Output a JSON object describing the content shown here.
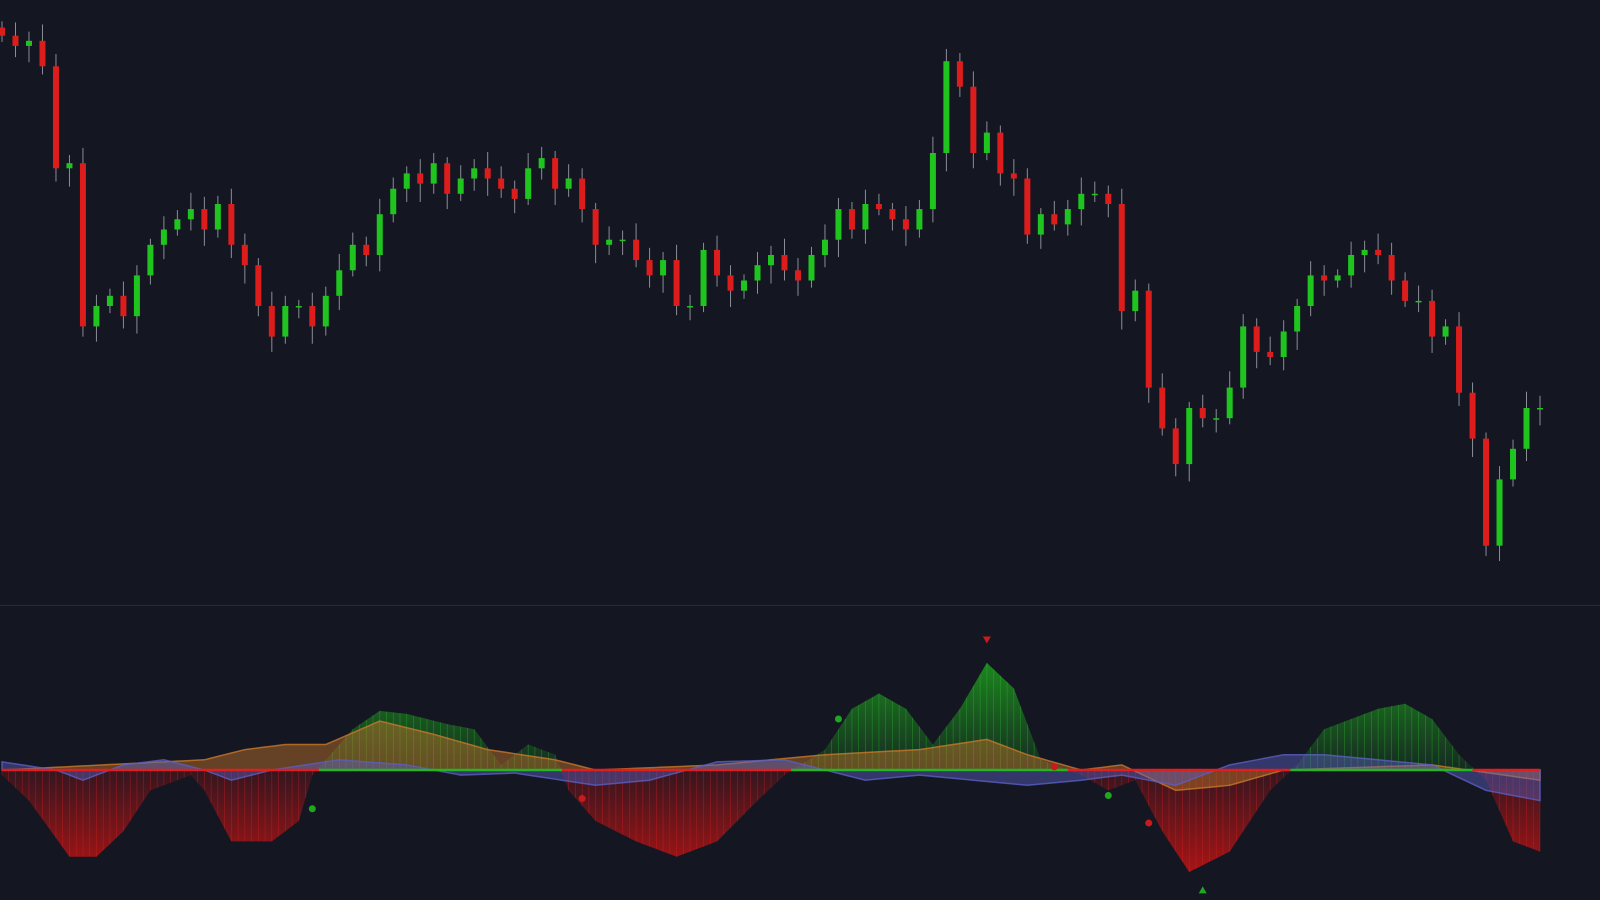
{
  "chart_data": [
    {
      "type": "candlestick",
      "title": "",
      "xlabel": "",
      "ylabel": "",
      "grid": false,
      "colors": {
        "up": "#1fc41f",
        "down": "#dd1c1c",
        "wick": "#8a8d96",
        "background": "#141622"
      },
      "close": [
        565,
        555,
        560,
        535,
        435,
        440,
        280,
        300,
        310,
        290,
        330,
        360,
        375,
        385,
        395,
        375,
        400,
        360,
        340,
        300,
        270,
        300,
        300,
        280,
        310,
        335,
        360,
        350,
        390,
        415,
        430,
        420,
        440,
        410,
        425,
        435,
        425,
        415,
        405,
        435,
        445,
        415,
        425,
        395,
        360,
        365,
        365,
        345,
        330,
        345,
        300,
        300,
        355,
        330,
        315,
        325,
        340,
        350,
        335,
        325,
        350,
        365,
        395,
        375,
        400,
        395,
        385,
        375,
        395,
        450,
        540,
        515,
        450,
        470,
        430,
        425,
        370,
        390,
        380,
        395,
        410,
        410,
        400,
        295,
        315,
        220,
        180,
        145,
        200,
        190,
        190,
        220,
        280,
        255,
        250,
        275,
        300,
        330,
        325,
        330,
        350,
        355,
        350,
        325,
        305,
        305,
        270,
        280,
        215,
        170,
        65,
        130,
        160,
        200,
        200
      ]
    },
    {
      "type": "area",
      "title": "",
      "grid": false,
      "zero_line": {
        "positive_color": "#22b822",
        "negative_color": "#e01e1e"
      },
      "series": [
        {
          "id": "histogram",
          "style": "histogram",
          "colors": {
            "positive": "#1e9a1e",
            "negative": "#b01414"
          },
          "points": [
            [
              0,
              -5
            ],
            [
              2,
              -30
            ],
            [
              5,
              -85
            ],
            [
              7,
              -85
            ],
            [
              9,
              -60
            ],
            [
              11,
              -20
            ],
            [
              14,
              -5
            ],
            [
              15,
              -20
            ],
            [
              17,
              -70
            ],
            [
              20,
              -70
            ],
            [
              22,
              -50
            ],
            [
              23,
              -5
            ],
            [
              26,
              40
            ],
            [
              28,
              58
            ],
            [
              30,
              55
            ],
            [
              33,
              45
            ],
            [
              35,
              40
            ],
            [
              37,
              5
            ],
            [
              39,
              25
            ],
            [
              41,
              15
            ],
            [
              42,
              -20
            ],
            [
              44,
              -50
            ],
            [
              47,
              -70
            ],
            [
              50,
              -85
            ],
            [
              53,
              -70
            ],
            [
              56,
              -30
            ],
            [
              58,
              -5
            ],
            [
              61,
              20
            ],
            [
              63,
              60
            ],
            [
              65,
              75
            ],
            [
              67,
              60
            ],
            [
              69,
              25
            ],
            [
              71,
              60
            ],
            [
              73,
              105
            ],
            [
              75,
              80
            ],
            [
              77,
              10
            ],
            [
              80,
              -5
            ],
            [
              82,
              -20
            ],
            [
              84,
              -10
            ],
            [
              86,
              -60
            ],
            [
              88,
              -100
            ],
            [
              91,
              -80
            ],
            [
              94,
              -20
            ],
            [
              96,
              5
            ],
            [
              98,
              40
            ],
            [
              102,
              60
            ],
            [
              104,
              65
            ],
            [
              106,
              50
            ],
            [
              108,
              15
            ],
            [
              110,
              -10
            ],
            [
              112,
              -70
            ],
            [
              114,
              -80
            ]
          ]
        },
        {
          "id": "orange-line",
          "style": "area",
          "color": "#c8782a",
          "points": [
            [
              0,
              0
            ],
            [
              15,
              10
            ],
            [
              18,
              20
            ],
            [
              21,
              25
            ],
            [
              24,
              25
            ],
            [
              28,
              48
            ],
            [
              32,
              35
            ],
            [
              36,
              20
            ],
            [
              41,
              10
            ],
            [
              44,
              0
            ],
            [
              53,
              5
            ],
            [
              61,
              15
            ],
            [
              68,
              20
            ],
            [
              73,
              30
            ],
            [
              76,
              15
            ],
            [
              80,
              0
            ],
            [
              83,
              5
            ],
            [
              87,
              -20
            ],
            [
              91,
              -15
            ],
            [
              95,
              0
            ],
            [
              106,
              5
            ],
            [
              114,
              -10
            ]
          ]
        },
        {
          "id": "blue-line",
          "style": "area",
          "color": "#5a5fc0",
          "points": [
            [
              0,
              8
            ],
            [
              4,
              0
            ],
            [
              6,
              -10
            ],
            [
              9,
              5
            ],
            [
              12,
              10
            ],
            [
              15,
              0
            ],
            [
              17,
              -10
            ],
            [
              20,
              0
            ],
            [
              25,
              10
            ],
            [
              30,
              5
            ],
            [
              34,
              -5
            ],
            [
              38,
              -3
            ],
            [
              44,
              -15
            ],
            [
              48,
              -10
            ],
            [
              53,
              8
            ],
            [
              58,
              10
            ],
            [
              61,
              0
            ],
            [
              64,
              -10
            ],
            [
              68,
              -5
            ],
            [
              72,
              -10
            ],
            [
              76,
              -15
            ],
            [
              80,
              -10
            ],
            [
              83,
              -5
            ],
            [
              87,
              -15
            ],
            [
              91,
              5
            ],
            [
              95,
              15
            ],
            [
              98,
              15
            ],
            [
              106,
              5
            ],
            [
              110,
              -20
            ],
            [
              114,
              -30
            ]
          ]
        }
      ],
      "markers": [
        {
          "shape": "triangle-down",
          "color": "#c81c1c",
          "bar": 73,
          "value": 128
        },
        {
          "shape": "triangle-up",
          "color": "#1fa81f",
          "bar": 89,
          "value": -118
        },
        {
          "shape": "dot",
          "color": "#1fa81f",
          "bar": 23,
          "value": -38
        },
        {
          "shape": "dot",
          "color": "#1fa81f",
          "bar": 62,
          "value": 50
        },
        {
          "shape": "dot",
          "color": "#1fa81f",
          "bar": 82,
          "value": -25
        },
        {
          "shape": "dot",
          "color": "#c81c1c",
          "bar": 43,
          "value": -28
        },
        {
          "shape": "dot",
          "color": "#c81c1c",
          "bar": 78,
          "value": 3
        },
        {
          "shape": "dot",
          "color": "#c81c1c",
          "bar": 85,
          "value": -52
        }
      ]
    }
  ]
}
